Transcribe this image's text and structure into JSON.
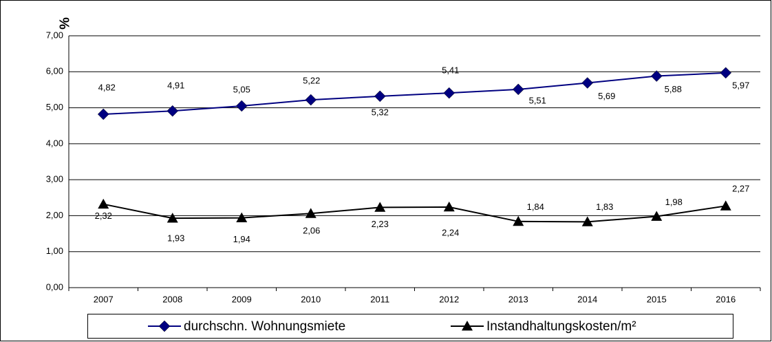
{
  "chart_data": {
    "type": "line",
    "y_label": "%",
    "categories": [
      "2007",
      "2008",
      "2009",
      "2010",
      "2011",
      "2012",
      "2013",
      "2014",
      "2015",
      "2016"
    ],
    "series": [
      {
        "name": "durchschn. Wohnungsmiete",
        "color": "#000080",
        "marker": "diamond",
        "values": [
          4.82,
          4.91,
          5.05,
          5.22,
          5.32,
          5.41,
          5.51,
          5.69,
          5.88,
          5.97
        ],
        "value_labels": [
          "4,82",
          "4,91",
          "5,05",
          "5,22",
          "5,32",
          "5,41",
          "5,51",
          "5,69",
          "5,88",
          "5,97"
        ]
      },
      {
        "name": "Instandhaltungskosten/m²",
        "color": "#000000",
        "marker": "triangle",
        "values": [
          2.32,
          1.93,
          1.94,
          2.06,
          2.23,
          2.24,
          1.84,
          1.83,
          1.98,
          2.27
        ],
        "value_labels": [
          "2,32",
          "1,93",
          "1,94",
          "2,06",
          "2,23",
          "2,24",
          "1,84",
          "1,83",
          "1,98",
          "2,27"
        ]
      }
    ],
    "ylim": [
      0,
      7
    ],
    "yticks": [
      {
        "value": 0,
        "label": "0,00"
      },
      {
        "value": 1,
        "label": "1,00"
      },
      {
        "value": 2,
        "label": "2,00"
      },
      {
        "value": 3,
        "label": "3,00"
      },
      {
        "value": 4,
        "label": "4,00"
      },
      {
        "value": 5,
        "label": "5,00"
      },
      {
        "value": 6,
        "label": "6,00"
      },
      {
        "value": 7,
        "label": "7,00"
      }
    ],
    "grid": true,
    "legend": "bottom"
  }
}
